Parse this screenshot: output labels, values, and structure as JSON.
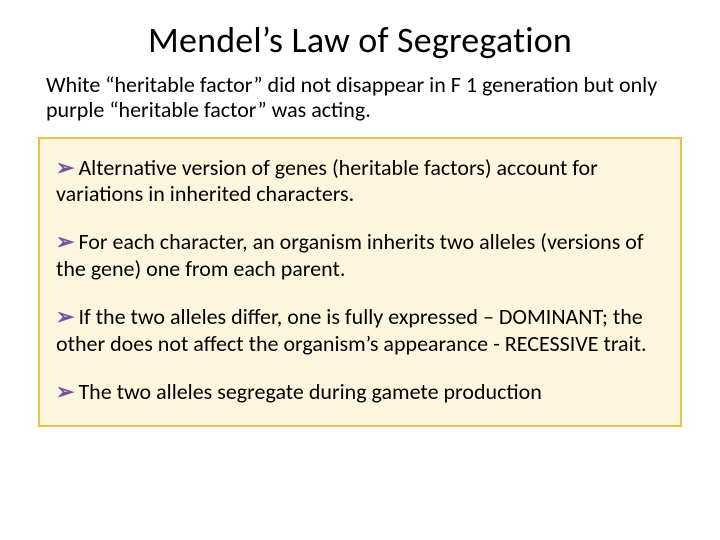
{
  "slide": {
    "title": "Mendel’s Law of Segregation",
    "intro": "White “heritable factor” did not disappear in F 1 generation but only purple “heritable factor” was acting.",
    "box": {
      "background_color": "#fdf6de",
      "border_color": "#e8c04a",
      "bullet_glyph": "➢",
      "bullet_color": "#7a52a1",
      "bullets": [
        "Alternative version of genes (heritable factors) account for variations in inherited characters.",
        "For each character, an organism inherits two alleles (versions of the gene) one from each parent.",
        "If the two alleles differ, one is fully expressed – DOMINANT; the other does not affect the organism’s appearance  - RECESSIVE trait.",
        "The two alleles segregate during gamete production"
      ]
    },
    "title_fontsize": 36,
    "body_fontsize": 22,
    "text_color": "#000000"
  }
}
